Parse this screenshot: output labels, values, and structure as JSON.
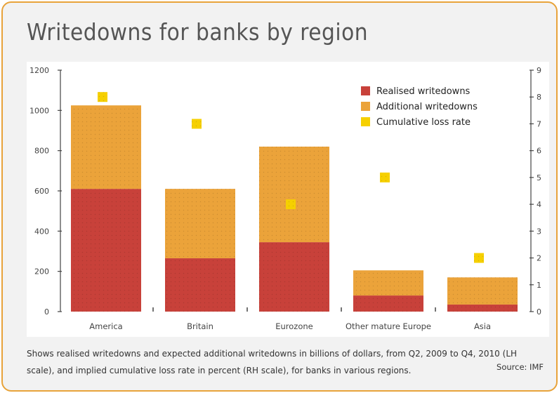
{
  "chart_data": {
    "type": "bar",
    "title": "Writedowns for banks by region",
    "categories": [
      "America",
      "Britain",
      "Eurozone",
      "Other mature Europe",
      "Asia"
    ],
    "series": [
      {
        "name": "Realised writedowns",
        "axis": "left",
        "values": [
          610,
          265,
          345,
          80,
          35
        ],
        "color": "#c8413a"
      },
      {
        "name": "Additional writedowns",
        "axis": "left",
        "values": [
          415,
          345,
          475,
          125,
          135
        ],
        "color": "#eba33a"
      },
      {
        "name": "Cumulative loss rate",
        "axis": "right",
        "marker": "square",
        "values": [
          8,
          7,
          4,
          5,
          2
        ],
        "color": "#f6d000"
      }
    ],
    "stacked": true,
    "ylim_left": [
      0,
      1200
    ],
    "yticks_left": [
      0,
      200,
      400,
      600,
      800,
      1000,
      1200
    ],
    "ylim_right": [
      0,
      9
    ],
    "yticks_right": [
      0,
      1,
      2,
      3,
      4,
      5,
      6,
      7,
      8,
      9
    ],
    "legend_position": "top-right",
    "grid": false
  },
  "caption": "Shows realised writedowns and expected additional writedowns in billions of dollars, from Q2, 2009 to Q4, 2010 (LH scale), and implied cumulative loss rate in percent (RH scale), for banks in various regions.",
  "source": "Source: IMF"
}
